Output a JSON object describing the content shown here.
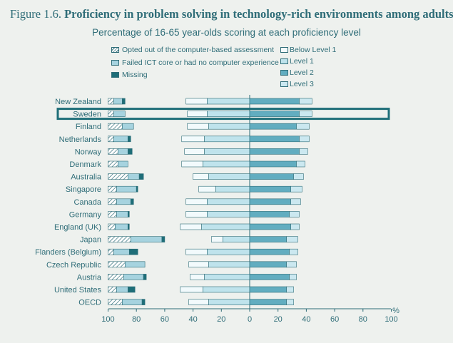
{
  "title_prefix": "Figure 1.6.",
  "title_text": "Proficiency in problem solving in technology-rich environments among adults",
  "subtitle": "Percentage of 16-65 year-olds scoring at each proficiency level",
  "legend": {
    "opted_out": "Opted out of the computer-based assessment",
    "failed_ict": "Failed ICT core or had no computer experience",
    "missing": "Missing",
    "below1": "Below Level 1",
    "level1": "Level 1",
    "level2": "Level 2",
    "level3": "Level 3"
  },
  "colors": {
    "text": "#2f6d78",
    "border": "#2f6d78",
    "opted_out": "#ffffff",
    "failed_ict": "#a6d3df",
    "missing": "#1e6e78",
    "below1": "#f2fafc",
    "level1": "#bfe3ec",
    "level2": "#62adc0",
    "level3": "#cbe8f0",
    "highlight": "#1e6e78"
  },
  "chart_data": {
    "type": "bar",
    "orientation": "horizontal-stacked",
    "xlim": [
      -100,
      100
    ],
    "x_ticks": [
      "100",
      "80",
      "60",
      "40",
      "20",
      "0",
      "20",
      "40",
      "60",
      "80",
      "100"
    ],
    "x_unit": "%",
    "highlighted_category": "Sweden",
    "categories": [
      "New Zealand",
      "Sweden",
      "Finland",
      "Netherlands",
      "Norway",
      "Denmark",
      "Australia",
      "Singapore",
      "Canada",
      "Germany",
      "England (UK)",
      "Japan",
      "Flanders (Belgium)",
      "Czech Republic",
      "Austria",
      "United States",
      "OECD"
    ],
    "series": [
      {
        "name": "Opted out of the computer-based assessment",
        "side": "left",
        "values": [
          4,
          4,
          10,
          4,
          7,
          7,
          14,
          6,
          6,
          6,
          5,
          16,
          4,
          12,
          11,
          6,
          10
        ]
      },
      {
        "name": "Failed ICT core or had no computer experience",
        "side": "left",
        "values": [
          6,
          8,
          8,
          10,
          7,
          7,
          8,
          14,
          10,
          8,
          9,
          22,
          11,
          14,
          14,
          8,
          14
        ]
      },
      {
        "name": "Missing",
        "side": "left",
        "values": [
          2,
          0,
          0,
          2,
          3,
          0,
          3,
          1,
          2,
          1,
          1,
          2,
          6,
          0,
          2,
          5,
          2
        ]
      },
      {
        "name": "Below Level 1",
        "side": "left",
        "values": [
          15,
          14,
          15,
          16,
          14,
          15,
          11,
          12,
          15,
          15,
          15,
          8,
          15,
          14,
          10,
          16,
          14
        ]
      },
      {
        "name": "Level 1",
        "side": "left",
        "values": [
          30,
          30,
          29,
          32,
          32,
          33,
          29,
          24,
          30,
          30,
          34,
          19,
          30,
          29,
          32,
          33,
          29
        ]
      },
      {
        "name": "Level 2",
        "side": "right",
        "values": [
          35,
          35,
          33,
          35,
          35,
          33,
          31,
          29,
          29,
          28,
          29,
          26,
          28,
          26,
          28,
          26,
          26
        ]
      },
      {
        "name": "Level 3",
        "side": "right",
        "values": [
          9,
          9,
          9,
          7,
          6,
          6,
          7,
          8,
          7,
          7,
          6,
          8,
          6,
          7,
          5,
          5,
          5
        ]
      }
    ]
  }
}
